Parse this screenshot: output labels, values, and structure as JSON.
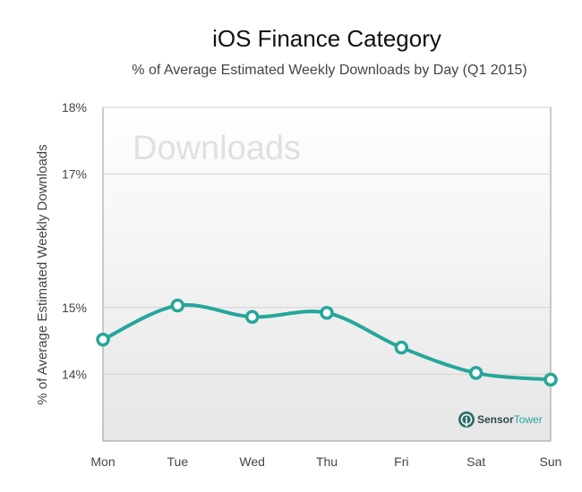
{
  "chart_data": {
    "type": "line",
    "title": "iOS Finance Category",
    "subtitle": "% of Average Estimated Weekly Downloads by Day (Q1 2015)",
    "ylabel": "% of  Average Estimated Weekly Downloads",
    "xlabel": "",
    "categories": [
      "Mon",
      "Tue",
      "Wed",
      "Thu",
      "Fri",
      "Sat",
      "Sun"
    ],
    "values": [
      14.52,
      15.03,
      14.86,
      14.92,
      14.4,
      14.02,
      13.92
    ],
    "y_ticks": [
      {
        "label": "18%",
        "value": 18
      },
      {
        "label": "17%",
        "value": 17
      },
      {
        "label": "15%",
        "value": 15
      },
      {
        "label": "14%",
        "value": 14
      }
    ],
    "ylim": [
      13,
      18
    ],
    "grid": true,
    "line_color": "#26a69a",
    "watermark": "Downloads",
    "brand": {
      "name_part1": "Sensor",
      "name_part2": "Tower",
      "icon": "sensor-tower-logo-icon"
    }
  }
}
